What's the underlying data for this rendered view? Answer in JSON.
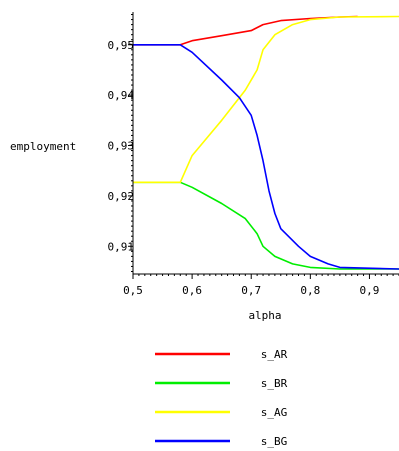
{
  "chart_data": {
    "type": "line",
    "title": "",
    "xlabel": "alpha",
    "ylabel": "employment",
    "xlim": [
      0.5,
      0.95
    ],
    "ylim": [
      0.9045,
      0.9565
    ],
    "x_ticks": [
      {
        "value": 0.5,
        "label": "0,5"
      },
      {
        "value": 0.6,
        "label": "0,6"
      },
      {
        "value": 0.7,
        "label": "0,7"
      },
      {
        "value": 0.8,
        "label": "0,8"
      },
      {
        "value": 0.9,
        "label": "0,9"
      }
    ],
    "y_ticks": [
      {
        "value": 0.91,
        "label": "0,91"
      },
      {
        "value": 0.92,
        "label": "0,92"
      },
      {
        "value": 0.93,
        "label": "0,93"
      },
      {
        "value": 0.94,
        "label": "0,94"
      },
      {
        "value": 0.95,
        "label": "0,95"
      }
    ],
    "legend_position": "bottom",
    "series": [
      {
        "name": "s_AR",
        "color": "#ff0000",
        "points": [
          [
            0.5,
            0.95
          ],
          [
            0.58,
            0.95
          ],
          [
            0.6,
            0.9508
          ],
          [
            0.65,
            0.9518
          ],
          [
            0.7,
            0.9528
          ],
          [
            0.72,
            0.954
          ],
          [
            0.75,
            0.9548
          ],
          [
            0.8,
            0.9552
          ],
          [
            0.85,
            0.9555
          ],
          [
            0.88,
            0.9556
          ]
        ]
      },
      {
        "name": "s_BR",
        "color": "#00ee00",
        "points": [
          [
            0.5,
            0.9227
          ],
          [
            0.58,
            0.9227
          ],
          [
            0.6,
            0.9217
          ],
          [
            0.65,
            0.9185
          ],
          [
            0.69,
            0.9155
          ],
          [
            0.71,
            0.9125
          ],
          [
            0.72,
            0.91
          ],
          [
            0.74,
            0.908
          ],
          [
            0.77,
            0.9065
          ],
          [
            0.8,
            0.9058
          ],
          [
            0.85,
            0.9055
          ],
          [
            0.95,
            0.9055
          ]
        ]
      },
      {
        "name": "s_AG",
        "color": "#ffff00",
        "points": [
          [
            0.5,
            0.9227
          ],
          [
            0.58,
            0.9227
          ],
          [
            0.6,
            0.928
          ],
          [
            0.65,
            0.935
          ],
          [
            0.69,
            0.941
          ],
          [
            0.71,
            0.945
          ],
          [
            0.72,
            0.949
          ],
          [
            0.74,
            0.952
          ],
          [
            0.77,
            0.954
          ],
          [
            0.8,
            0.955
          ],
          [
            0.85,
            0.9555
          ],
          [
            0.95,
            0.9556
          ]
        ]
      },
      {
        "name": "s_BG",
        "color": "#0000ff",
        "points": [
          [
            0.5,
            0.95
          ],
          [
            0.58,
            0.95
          ],
          [
            0.6,
            0.9485
          ],
          [
            0.65,
            0.943
          ],
          [
            0.68,
            0.9395
          ],
          [
            0.7,
            0.936
          ],
          [
            0.71,
            0.932
          ],
          [
            0.72,
            0.927
          ],
          [
            0.73,
            0.921
          ],
          [
            0.74,
            0.9165
          ],
          [
            0.75,
            0.9135
          ],
          [
            0.78,
            0.91
          ],
          [
            0.8,
            0.908
          ],
          [
            0.83,
            0.9065
          ],
          [
            0.85,
            0.9058
          ],
          [
            0.95,
            0.9055
          ]
        ]
      }
    ]
  }
}
